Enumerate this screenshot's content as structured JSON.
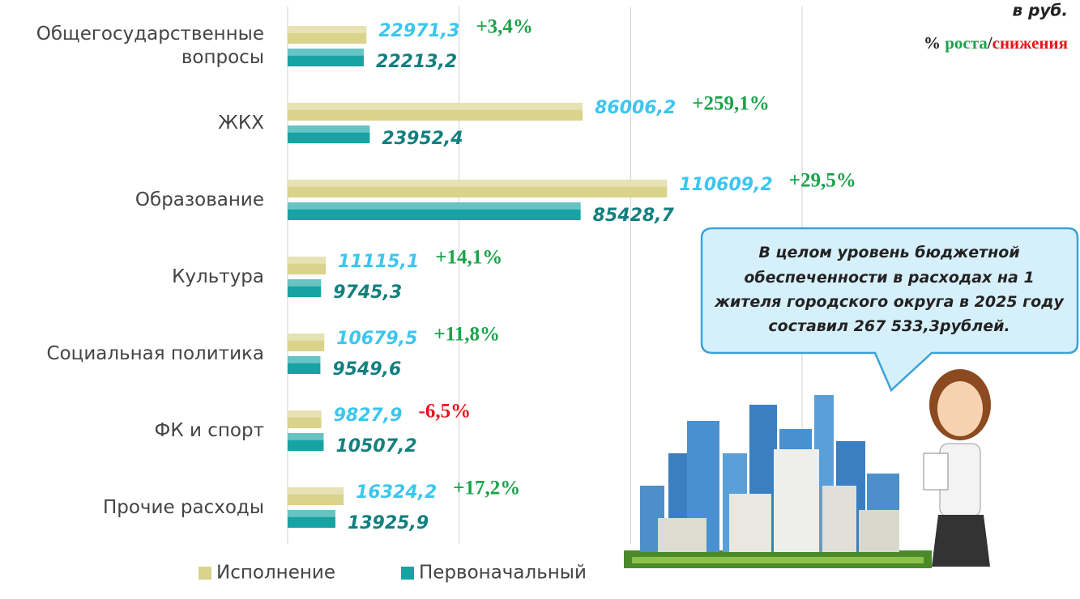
{
  "chart_data": {
    "type": "bar",
    "orientation": "horizontal",
    "title": "в руб.",
    "legend_note": {
      "prefix": "%",
      "growth": "роста",
      "separator": "/",
      "decline": "снижения",
      "growth_color": "#1aa34a",
      "decline_color": "#e8141b"
    },
    "categories": [
      "Общегосударственные вопросы",
      "ЖКХ",
      "Образование",
      "Культура",
      "Социальная политика",
      "ФК и спорт",
      "Прочие расходы"
    ],
    "series": [
      {
        "name": "Исполнение",
        "color": "#d9d38c",
        "label_color": "#3cc6ef",
        "values": [
          22971.3,
          86006.2,
          110609.2,
          11115.1,
          10679.5,
          9827.9,
          16324.2
        ],
        "value_labels": [
          "22971,3",
          "86006,2",
          "110609,2",
          "11115,1",
          "10679,5",
          "9827,9",
          "16324,2"
        ]
      },
      {
        "name": "Первоначальный",
        "color": "#17a3a3",
        "label_color": "#137f7f",
        "values": [
          22213.2,
          23952.4,
          85428.7,
          9745.3,
          9549.6,
          10507.2,
          13925.9
        ],
        "value_labels": [
          "22213,2",
          "23952,4",
          "85428,7",
          "9745,3",
          "9549,6",
          "10507,2",
          "13925,9"
        ]
      }
    ],
    "annotations": [
      {
        "text": "+3,4%",
        "color": "#1aa34a"
      },
      {
        "text": "+259,1%",
        "color": "#1aa34a"
      },
      {
        "text": "+29,5%",
        "color": "#1aa34a"
      },
      {
        "text": "+14,1%",
        "color": "#1aa34a"
      },
      {
        "text": "+11,8%",
        "color": "#1aa34a"
      },
      {
        "text": "-6,5%",
        "color": "#e8141b"
      },
      {
        "text": "+17,2%",
        "color": "#1aa34a"
      }
    ],
    "xlim": [
      0,
      150000
    ],
    "xticks": [
      0,
      50000,
      100000,
      150000
    ],
    "grid": true,
    "legend": "bottom",
    "callout": "В целом уровень бюджетной обеспеченности в расходах на 1 жителя городского округа в 2025 году составил 267 533,3рублей."
  }
}
